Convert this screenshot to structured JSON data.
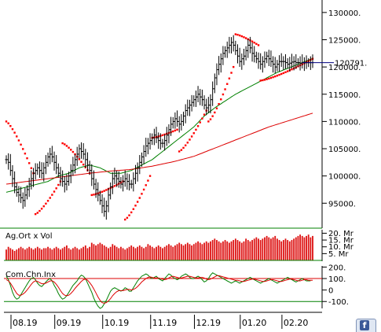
{
  "chart_data": [
    {
      "type": "line",
      "panel": "price",
      "ylim": [
        91000,
        132000
      ],
      "y_ticks": [
        "130000.",
        "125000.",
        "120000.",
        "115000.",
        "110000.",
        "105000.",
        "100000.",
        "95000."
      ],
      "y_tick_values": [
        130000,
        125000,
        120000,
        115000,
        110000,
        105000,
        100000,
        95000
      ],
      "last_value_label": "120791.",
      "last_value": 120791,
      "x_ticks": [
        "08.19",
        "09.19",
        "10.19",
        "11.19",
        "12.19",
        "01.20",
        "02.20"
      ],
      "x_tick_positions": [
        0,
        21,
        44,
        67,
        88,
        110,
        130
      ],
      "n_bars": 148,
      "price_close": [
        103000,
        102500,
        101000,
        99500,
        98000,
        97000,
        96500,
        96000,
        95500,
        96500,
        97500,
        98500,
        99500,
        100500,
        101000,
        101500,
        101000,
        100500,
        101500,
        102500,
        103500,
        104000,
        103500,
        102500,
        101500,
        100500,
        99500,
        99000,
        98500,
        99000,
        100000,
        101000,
        102000,
        103000,
        104000,
        105000,
        104500,
        104000,
        103000,
        102000,
        101000,
        99500,
        98500,
        97500,
        96500,
        95500,
        94500,
        93500,
        94500,
        96500,
        98000,
        99500,
        100000,
        99500,
        99000,
        98500,
        99000,
        99500,
        99000,
        98500,
        98500,
        99500,
        100500,
        101500,
        102500,
        103500,
        104500,
        105500,
        106000,
        106500,
        107000,
        107500,
        107000,
        106500,
        106000,
        106000,
        106500,
        107500,
        108500,
        109500,
        110000,
        110500,
        110000,
        109500,
        110000,
        111000,
        112000,
        112500,
        113000,
        113500,
        114000,
        114500,
        115000,
        114500,
        114000,
        113000,
        112500,
        113000,
        114000,
        116000,
        118000,
        119500,
        120500,
        121500,
        122500,
        123000,
        123500,
        124000,
        124500,
        124000,
        123000,
        122000,
        121000,
        121500,
        122000,
        123000,
        124000,
        123500,
        122500,
        122000,
        121500,
        121000,
        120500,
        121000,
        121500,
        122000,
        121500,
        121000,
        120500,
        120000,
        120500,
        121000,
        121000,
        121000,
        120800,
        120500,
        120700,
        120900,
        121000,
        120791,
        120800,
        120700,
        120800,
        120791,
        120791,
        120791,
        120791,
        120791
      ],
      "series": [
        {
          "color": "#008000",
          "values": [
            97000,
            97100,
            97200,
            97300,
            97400,
            97500,
            97600,
            97700,
            97800,
            97900,
            98000,
            98100,
            98200,
            98300,
            98400,
            98500,
            98600,
            98700,
            98800,
            98900,
            99000,
            99200,
            99400,
            99600,
            99800,
            100000,
            100100,
            100200,
            100300,
            100400,
            100500,
            100700,
            100900,
            101100,
            101300,
            101500,
            101600,
            101700,
            101800,
            101900,
            102000,
            101900,
            101800,
            101700,
            101600,
            101500,
            101300,
            101100,
            100900,
            100700,
            100500,
            100500,
            100500,
            100500,
            100500,
            100500,
            100600,
            100700,
            100800,
            100900,
            101000,
            101200,
            101400,
            101600,
            101800,
            102000,
            102200,
            102400,
            102600,
            102800,
            103000,
            103300,
            103600,
            103900,
            104200,
            104500,
            104800,
            105100,
            105400,
            105700,
            106000,
            106300,
            106600,
            106900,
            107200,
            107500,
            107800,
            108100,
            108400,
            108700,
            109000,
            109400,
            109800,
            110200,
            110600,
            111000,
            111300,
            111600,
            111900,
            112200,
            112500,
            112750,
            113000,
            113250,
            113500,
            113750,
            114000,
            114250,
            114500,
            114750,
            115000,
            115200,
            115400,
            115600,
            115800,
            116000,
            116200,
            116400,
            116600,
            116800,
            117000,
            117200,
            117400,
            117600,
            117800,
            118000,
            118200,
            118400,
            118600,
            118800,
            119000,
            119150,
            119300,
            119450,
            119600,
            119750,
            119900,
            120050,
            120200,
            120350,
            120500,
            120650,
            120800,
            120950,
            121100,
            121250,
            121400,
            121550
          ]
        },
        {
          "color": "#dd0000",
          "values": [
            98500,
            98550,
            98600,
            98650,
            98700,
            98750,
            98800,
            98850,
            98900,
            98950,
            99000,
            99050,
            99100,
            99150,
            99200,
            99250,
            99300,
            99350,
            99400,
            99450,
            99500,
            99550,
            99600,
            99650,
            99700,
            99750,
            99800,
            99850,
            99900,
            99950,
            100000,
            100050,
            100100,
            100150,
            100200,
            100250,
            100300,
            100350,
            100400,
            100450,
            100500,
            100540,
            100580,
            100620,
            100660,
            100700,
            100740,
            100780,
            100820,
            100860,
            100900,
            100930,
            100960,
            100990,
            101020,
            101050,
            101080,
            101110,
            101140,
            101170,
            101200,
            101260,
            101320,
            101380,
            101440,
            101500,
            101560,
            101620,
            101680,
            101740,
            101800,
            101880,
            101960,
            102040,
            102120,
            102200,
            102280,
            102360,
            102440,
            102520,
            102600,
            102700,
            102800,
            102900,
            103000,
            103100,
            103200,
            103300,
            103400,
            103500,
            103600,
            103750,
            103900,
            104050,
            104200,
            104350,
            104500,
            104650,
            104800,
            104950,
            105100,
            105250,
            105400,
            105550,
            105700,
            105850,
            106000,
            106150,
            106300,
            106450,
            106600,
            106750,
            106900,
            107050,
            107200,
            107350,
            107500,
            107650,
            107800,
            107950,
            108100,
            108250,
            108400,
            108550,
            108700,
            108850,
            109000,
            109120,
            109240,
            109360,
            109480,
            109600,
            109720,
            109840,
            109960,
            110080,
            110200,
            110320,
            110440,
            110560,
            110680,
            110800,
            110920,
            111040,
            111160,
            111280,
            111400,
            111520
          ]
        }
      ],
      "parabolic_sar": {
        "color": "#ff0000",
        "segments": [
          [
            0,
            13,
            110000,
            100500
          ],
          [
            14,
            26,
            93000,
            99000
          ],
          [
            27,
            40,
            106000,
            100500
          ],
          [
            41,
            56,
            96500,
            99000
          ],
          [
            57,
            69,
            92000,
            100000
          ],
          [
            70,
            82,
            107000,
            108500
          ],
          [
            83,
            96,
            104500,
            112000
          ],
          [
            97,
            109,
            110000,
            120000
          ],
          [
            110,
            121,
            126000,
            124000
          ],
          [
            122,
            147,
            117500,
            121500
          ]
        ]
      }
    },
    {
      "type": "bar",
      "panel": "volume",
      "title": "Ag.Ort x Vol",
      "y_ticks": [
        "20. Mr",
        "15. Mr",
        "10. Mr",
        "5. Mr"
      ],
      "y_tick_values": [
        20,
        15,
        10,
        5
      ],
      "unit": "Mr",
      "ylim": [
        0,
        22
      ],
      "bar_color": "#dd1111",
      "values": [
        8,
        10,
        9,
        8,
        7,
        8,
        9,
        10,
        9,
        8,
        9,
        10,
        9,
        8,
        9,
        10,
        9,
        8,
        9,
        9,
        10,
        9,
        8,
        9,
        10,
        9,
        8,
        9,
        10,
        11,
        9,
        8,
        9,
        10,
        9,
        8,
        9,
        10,
        11,
        9,
        10,
        13,
        12,
        11,
        12,
        13,
        12,
        11,
        10,
        9,
        10,
        12,
        11,
        10,
        9,
        10,
        9,
        8,
        9,
        10,
        11,
        10,
        9,
        10,
        11,
        10,
        9,
        10,
        12,
        11,
        10,
        9,
        10,
        11,
        10,
        9,
        10,
        11,
        12,
        11,
        10,
        11,
        12,
        13,
        12,
        11,
        12,
        13,
        12,
        11,
        12,
        13,
        14,
        13,
        12,
        13,
        14,
        13,
        14,
        15,
        16,
        15,
        14,
        13,
        14,
        15,
        14,
        13,
        14,
        15,
        16,
        15,
        14,
        13,
        14,
        16,
        15,
        14,
        15,
        16,
        17,
        16,
        15,
        16,
        17,
        18,
        17,
        16,
        17,
        18,
        16,
        15,
        14,
        15,
        16,
        15,
        14,
        15,
        16,
        17,
        18,
        19,
        18,
        17,
        18,
        19,
        17,
        18
      ]
    },
    {
      "type": "line",
      "panel": "oscillator",
      "title": "Com.Chn.Inx",
      "y_ticks": [
        "200.",
        "100.",
        "0",
        "-100."
      ],
      "y_tick_values": [
        200,
        100,
        0,
        -100
      ],
      "ylim": [
        -160,
        210
      ],
      "ref_lines": [
        {
          "value": 100,
          "color": "#dd0000"
        },
        {
          "value": -100,
          "color": "#008000"
        }
      ],
      "series": [
        {
          "color": "#008000",
          "values": [
            120,
            90,
            40,
            -20,
            -60,
            -80,
            -70,
            -40,
            -10,
            20,
            50,
            80,
            100,
            110,
            90,
            60,
            40,
            30,
            50,
            70,
            90,
            100,
            80,
            40,
            10,
            -30,
            -60,
            -80,
            -70,
            -50,
            -20,
            10,
            40,
            60,
            80,
            110,
            130,
            120,
            100,
            60,
            20,
            -20,
            -70,
            -110,
            -140,
            -160,
            -150,
            -120,
            -90,
            -50,
            -10,
            10,
            20,
            10,
            0,
            -10,
            0,
            20,
            10,
            -10,
            -10,
            20,
            50,
            80,
            100,
            120,
            130,
            140,
            130,
            110,
            100,
            110,
            120,
            100,
            90,
            80,
            100,
            120,
            140,
            130,
            110,
            100,
            90,
            100,
            120,
            130,
            140,
            130,
            110,
            100,
            100,
            110,
            120,
            110,
            90,
            70,
            80,
            100,
            130,
            150,
            140,
            130,
            120,
            110,
            100,
            90,
            80,
            70,
            60,
            70,
            80,
            70,
            60,
            70,
            80,
            90,
            100,
            110,
            100,
            90,
            80,
            70,
            60,
            70,
            80,
            90,
            100,
            90,
            80,
            70,
            60,
            70,
            80,
            90,
            100,
            110,
            100,
            90,
            80,
            70,
            80,
            90,
            100,
            90,
            80,
            80,
            80
          ]
        },
        {
          "color": "#dd0000",
          "values": [
            90,
            80,
            60,
            30,
            0,
            -30,
            -45,
            -45,
            -35,
            -20,
            0,
            25,
            50,
            70,
            80,
            75,
            65,
            55,
            55,
            60,
            70,
            80,
            80,
            70,
            50,
            25,
            -5,
            -30,
            -45,
            -50,
            -45,
            -30,
            -10,
            15,
            35,
            55,
            75,
            90,
            95,
            85,
            65,
            40,
            10,
            -25,
            -60,
            -90,
            -110,
            -115,
            -110,
            -95,
            -75,
            -50,
            -30,
            -15,
            -5,
            -5,
            -5,
            0,
            5,
            5,
            0,
            5,
            15,
            30,
            50,
            70,
            85,
            100,
            110,
            115,
            110,
            105,
            105,
            105,
            100,
            95,
            90,
            95,
            105,
            115,
            120,
            115,
            110,
            105,
            105,
            110,
            115,
            120,
            120,
            115,
            110,
            105,
            105,
            110,
            110,
            105,
            95,
            90,
            95,
            105,
            115,
            125,
            125,
            120,
            115,
            110,
            105,
            100,
            95,
            90,
            85,
            85,
            80,
            75,
            75,
            80,
            85,
            90,
            95,
            95,
            90,
            85,
            80,
            75,
            75,
            80,
            85,
            90,
            90,
            85,
            80,
            75,
            75,
            80,
            85,
            90,
            95,
            95,
            90,
            85,
            80,
            80,
            85,
            90,
            90,
            85,
            85,
            85
          ]
        }
      ]
    }
  ]
}
